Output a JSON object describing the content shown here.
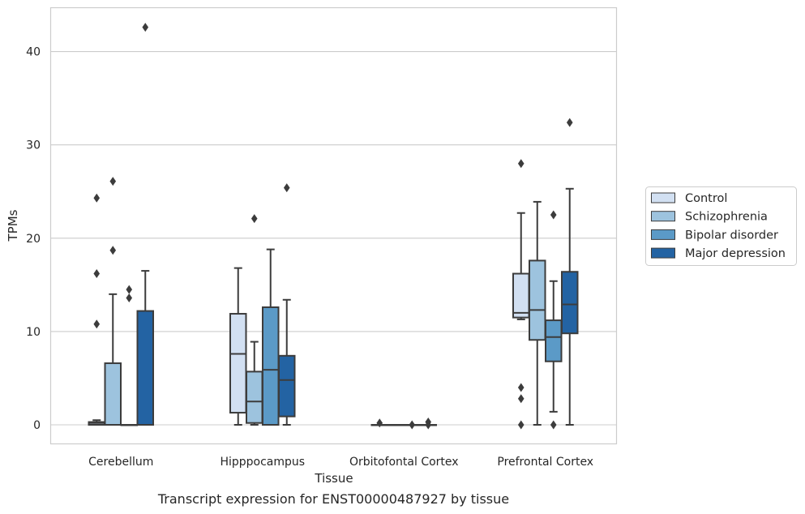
{
  "chart_data": {
    "type": "box",
    "caption": "Transcript expression for ENST00000487927 by tissue",
    "xlabel": "Tissue",
    "ylabel": "TPMs",
    "ylim": [
      -2,
      45
    ],
    "yticks": [
      0,
      10,
      20,
      30,
      40
    ],
    "grid": "horizontal",
    "legend_position": "right",
    "categories": [
      "Cerebellum",
      "Hipppocampus",
      "Orbitofontal Cortex",
      "Prefrontal Cortex"
    ],
    "series": [
      {
        "name": "Control",
        "color": "#d2e0f2",
        "boxes": [
          {
            "whisker_low": 0,
            "q1": 0,
            "median": 0.2,
            "q3": 0.3,
            "whisker_high": 0.5,
            "outliers": [
              10.8,
              16.2,
              24.3
            ]
          },
          {
            "whisker_low": 0,
            "q1": 1.3,
            "median": 7.6,
            "q3": 11.9,
            "whisker_high": 16.8,
            "outliers": []
          },
          {
            "whisker_low": 0,
            "q1": 0,
            "median": 0,
            "q3": 0,
            "whisker_high": 0,
            "outliers": [
              0.2
            ]
          },
          {
            "whisker_low": 11.3,
            "q1": 11.5,
            "median": 12.0,
            "q3": 16.2,
            "whisker_high": 22.7,
            "outliers": [
              0,
              2.8,
              4.0,
              28.0
            ]
          }
        ]
      },
      {
        "name": "Schizophrenia",
        "color": "#9dc3de",
        "boxes": [
          {
            "whisker_low": 0,
            "q1": 0,
            "median": 0,
            "q3": 6.6,
            "whisker_high": 14.0,
            "outliers": [
              18.7,
              26.1
            ]
          },
          {
            "whisker_low": 0,
            "q1": 0.2,
            "median": 2.5,
            "q3": 5.7,
            "whisker_high": 8.9,
            "outliers": [
              22.1
            ]
          },
          {
            "whisker_low": 0,
            "q1": 0,
            "median": 0,
            "q3": 0,
            "whisker_high": 0,
            "outliers": []
          },
          {
            "whisker_low": 0,
            "q1": 9.1,
            "median": 12.3,
            "q3": 17.6,
            "whisker_high": 23.9,
            "outliers": []
          }
        ]
      },
      {
        "name": "Bipolar disorder",
        "color": "#5b9ac7",
        "boxes": [
          {
            "whisker_low": 0,
            "q1": 0,
            "median": 0,
            "q3": 0,
            "whisker_high": 0,
            "outliers": [
              13.6,
              14.5
            ]
          },
          {
            "whisker_low": 0,
            "q1": 0,
            "median": 5.9,
            "q3": 12.6,
            "whisker_high": 18.8,
            "outliers": []
          },
          {
            "whisker_low": 0,
            "q1": 0,
            "median": 0,
            "q3": 0,
            "whisker_high": 0,
            "outliers": [
              0
            ]
          },
          {
            "whisker_low": 1.4,
            "q1": 6.8,
            "median": 9.4,
            "q3": 11.2,
            "whisker_high": 15.4,
            "outliers": [
              0,
              22.5
            ]
          }
        ]
      },
      {
        "name": "Major depression",
        "color": "#2363a3",
        "boxes": [
          {
            "whisker_low": 0,
            "q1": 0,
            "median": 0,
            "q3": 12.2,
            "whisker_high": 16.5,
            "outliers": [
              42.6
            ]
          },
          {
            "whisker_low": 0,
            "q1": 0.9,
            "median": 4.8,
            "q3": 7.4,
            "whisker_high": 13.4,
            "outliers": [
              25.4
            ]
          },
          {
            "whisker_low": 0,
            "q1": 0,
            "median": 0,
            "q3": 0,
            "whisker_high": 0,
            "outliers": [
              0,
              0.3
            ]
          },
          {
            "whisker_low": 0,
            "q1": 9.8,
            "median": 12.9,
            "q3": 16.4,
            "whisker_high": 25.3,
            "outliers": [
              32.4
            ]
          }
        ]
      }
    ]
  }
}
